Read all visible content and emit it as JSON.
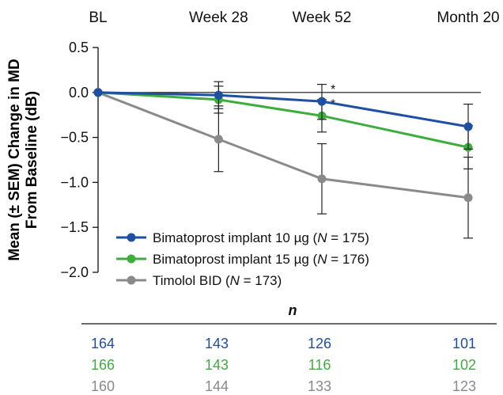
{
  "chart_data": {
    "type": "line",
    "title": "",
    "ylabel_line1": "Mean (± SEM) Change in MD",
    "ylabel_line2": "From Baseline (dB)",
    "xlabel": "",
    "x_categories": [
      "BL",
      "Week 28",
      "Week 52",
      "Month 20"
    ],
    "x_positions": [
      0,
      28,
      52,
      86
    ],
    "ylim": [
      -2.0,
      0.5
    ],
    "yticks": [
      0.5,
      0.0,
      -0.5,
      -1.0,
      -1.5,
      -2.0
    ],
    "ytick_labels": [
      "0.5",
      "0.0",
      "−0.5",
      "−1.0",
      "−1.5",
      "−2.0"
    ],
    "zero_line": true,
    "series": [
      {
        "name_prefix": "Bimatoprost implant 10 µg (",
        "name_n": "N",
        "name_suffix": " = 175)",
        "color": "#1f4fa3",
        "values": [
          0.0,
          -0.03,
          -0.1,
          -0.38
        ],
        "sem_upper": [
          0.0,
          0.12,
          0.09,
          -0.13
        ],
        "sem_lower": [
          0.0,
          -0.18,
          -0.3,
          -0.63
        ],
        "significance": [
          null,
          null,
          "*",
          null
        ]
      },
      {
        "name_prefix": "Bimatoprost implant 15 µg (",
        "name_n": "N",
        "name_suffix": " = 176)",
        "color": "#3dae3d",
        "values": [
          0.0,
          -0.08,
          -0.26,
          -0.61
        ],
        "sem_upper": [
          0.0,
          0.07,
          -0.08,
          -0.37
        ],
        "sem_lower": [
          0.0,
          -0.23,
          -0.44,
          -0.85
        ],
        "significance": [
          null,
          null,
          "*",
          null
        ]
      },
      {
        "name_prefix": "Timolol BID (",
        "name_n": "N",
        "name_suffix": " = 173)",
        "color": "#8a8a8a",
        "values": [
          0.0,
          -0.52,
          -0.96,
          -1.17
        ],
        "sem_upper": [
          0.0,
          -0.15,
          -0.57,
          -0.72
        ],
        "sem_lower": [
          0.0,
          -0.88,
          -1.35,
          -1.62
        ],
        "significance": [
          null,
          null,
          null,
          null
        ]
      }
    ],
    "legend_position": "lower-left",
    "n_table": {
      "header": "n",
      "rows": [
        {
          "color": "#1f4fa3",
          "values": [
            "164",
            "143",
            "126",
            "101"
          ]
        },
        {
          "color": "#3dae3d",
          "values": [
            "166",
            "143",
            "116",
            "102"
          ]
        },
        {
          "color": "#8a8a8a",
          "values": [
            "160",
            "144",
            "133",
            "123"
          ]
        }
      ]
    }
  }
}
